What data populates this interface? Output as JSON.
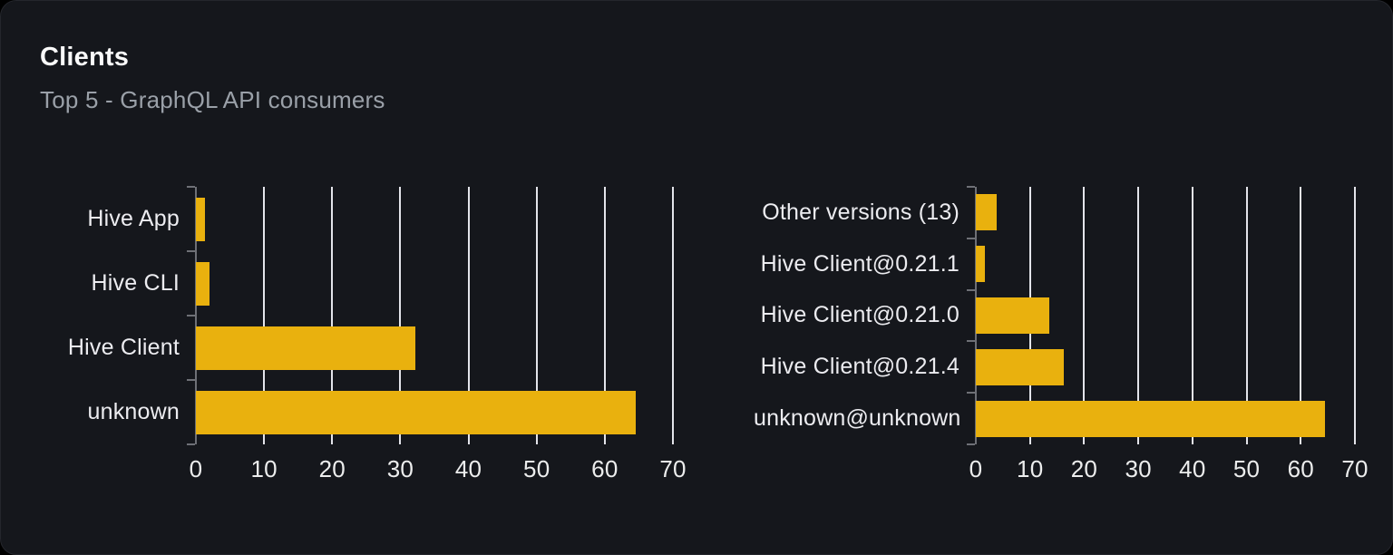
{
  "card": {
    "title": "Clients",
    "subtitle": "Top 5 - GraphQL API consumers"
  },
  "colors": {
    "page_background": "#000000",
    "card_background": "#15171c",
    "bar": "#e9b10e",
    "gridline": "#e3e4ea",
    "axis": "#6e7076",
    "title_text": "#fafafa",
    "subtitle_text": "#9aa0a8",
    "label_text": "#ececf0"
  },
  "chart_data": [
    {
      "id": "clients-by-name",
      "type": "bar",
      "orientation": "horizontal",
      "title": "",
      "categories": [
        "Hive App",
        "Hive CLI",
        "Hive Client",
        "unknown"
      ],
      "values": [
        1.3,
        2.0,
        32.2,
        64.5
      ],
      "xlabel": "",
      "ylabel": "",
      "xlim": [
        0,
        70
      ],
      "xticks": [
        0,
        10,
        20,
        30,
        40,
        50,
        60,
        70
      ],
      "grid": true,
      "legend": false,
      "bar_color": "#e9b10e"
    },
    {
      "id": "clients-by-version",
      "type": "bar",
      "orientation": "horizontal",
      "title": "",
      "categories": [
        "Other versions (13)",
        "Hive Client@0.21.1",
        "Hive Client@0.21.0",
        "Hive Client@0.21.4",
        "unknown@unknown"
      ],
      "values": [
        3.9,
        1.7,
        13.5,
        16.3,
        64.4
      ],
      "xlabel": "",
      "ylabel": "",
      "xlim": [
        0,
        70
      ],
      "xticks": [
        0,
        10,
        20,
        30,
        40,
        50,
        60,
        70
      ],
      "grid": true,
      "legend": false,
      "bar_color": "#e9b10e"
    }
  ]
}
